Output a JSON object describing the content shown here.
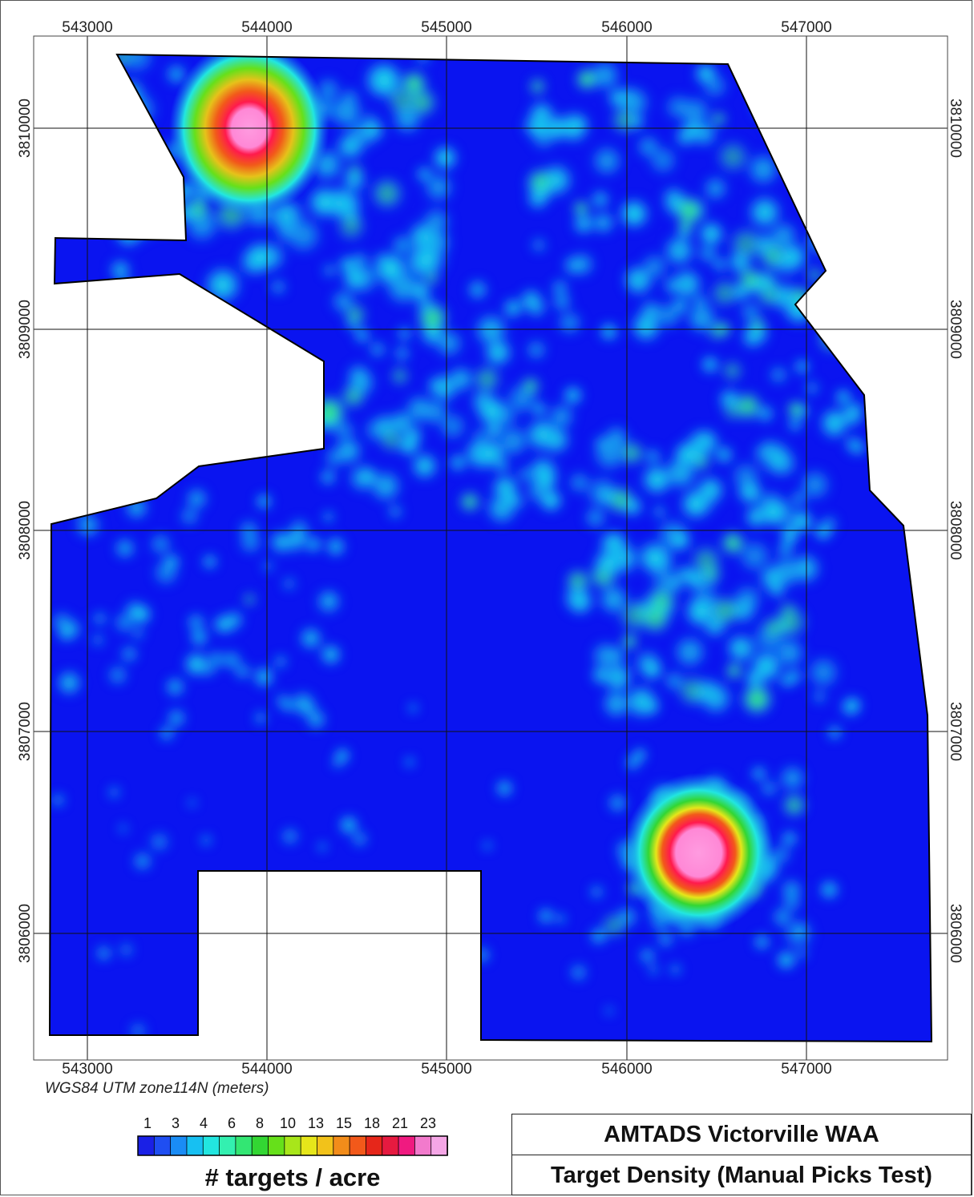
{
  "title": "AMTADS Victorville WAA",
  "subtitle": "Target Density (Manual Picks Test)",
  "crs_label": "WGS84 UTM zone114N (meters)",
  "colors": {
    "background_density": "#0a14f0",
    "outline": "#000000",
    "ramp": [
      "#1a20e6",
      "#1f4ef2",
      "#1a8cf5",
      "#17c0f2",
      "#22e6e0",
      "#33f0b0",
      "#33e673",
      "#33d633",
      "#66e01a",
      "#a8e61a",
      "#e6e61a",
      "#f2c21a",
      "#f28c1a",
      "#f2591a",
      "#e6261a",
      "#e61a40",
      "#f01a80",
      "#f27acc",
      "#f5a6e6"
    ]
  },
  "axes": {
    "x_ticks": [
      "543000",
      "544000",
      "545000",
      "546000",
      "547000"
    ],
    "y_ticks": [
      "3810000",
      "3809000",
      "3808000",
      "3807000",
      "3806000"
    ]
  },
  "legend": {
    "units": "# targets / acre",
    "values": [
      "1",
      "3",
      "4",
      "6",
      "8",
      "10",
      "13",
      "15",
      "18",
      "21",
      "23"
    ]
  },
  "hotspots": [
    {
      "name": "northwest-high-density-cluster",
      "easting": 543900,
      "northing": 3810000,
      "level": "high"
    },
    {
      "name": "southeast-high-density-cluster",
      "easting": 546400,
      "northing": 3806400,
      "level": "high"
    }
  ]
}
